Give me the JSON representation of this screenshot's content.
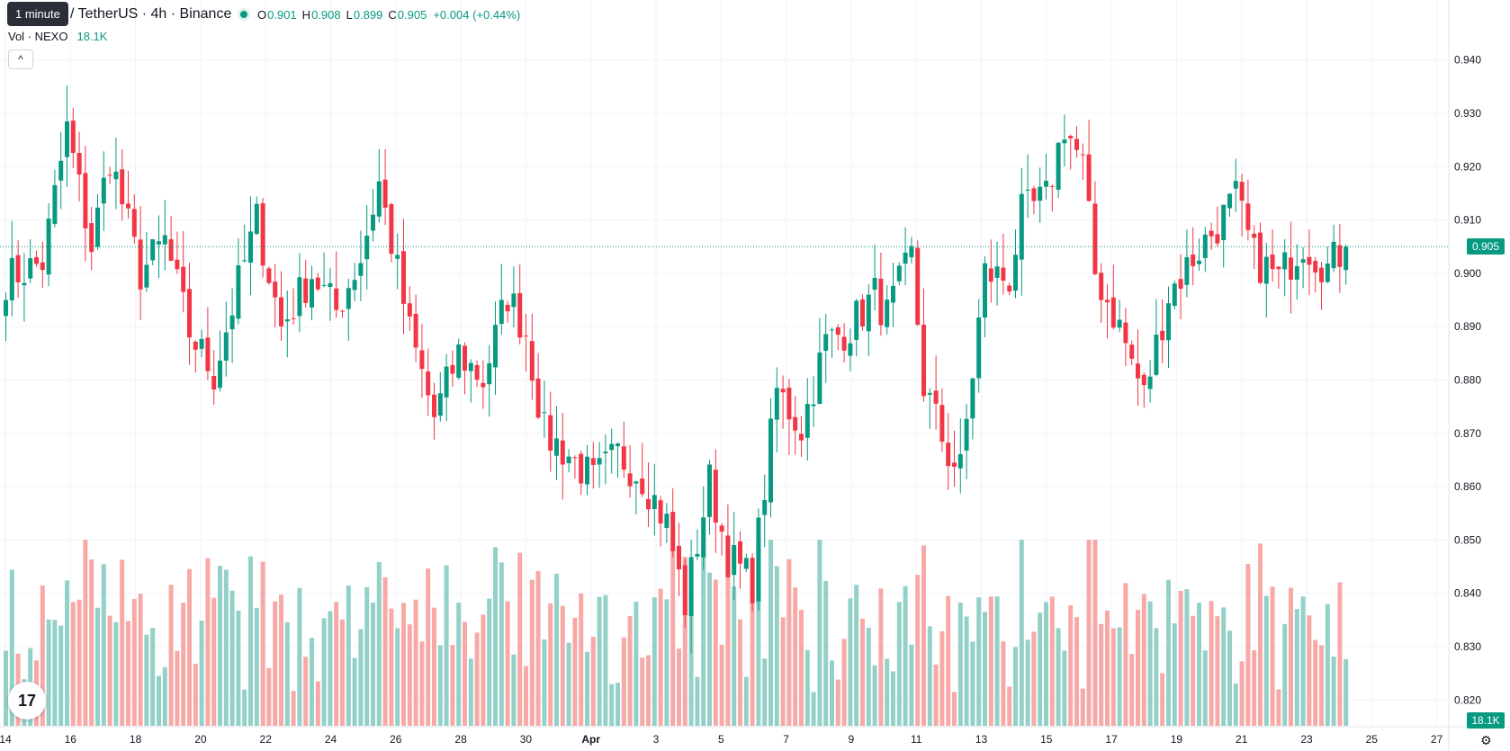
{
  "tooltip": "1 minute",
  "symbol": "/ TetherUS · 4h · Binance",
  "ohlc": {
    "o_label": "O",
    "o": "0.901",
    "h_label": "H",
    "h": "0.908",
    "l_label": "L",
    "l": "0.899",
    "c_label": "C",
    "c": "0.905",
    "change": "+0.004 (+0.44%)"
  },
  "volume": {
    "label": "Vol · NEXO",
    "value": "18.1K"
  },
  "collapse_icon": "^",
  "logo_text": "17",
  "settings_icon": "⚙",
  "price_tag": "0.905",
  "volume_tag": "18.1K",
  "colors": {
    "up": "#089981",
    "down": "#f23645",
    "up_vol": "#93d1c8",
    "down_vol": "#f7a9a7",
    "grid": "#f0f3fa",
    "axis_text": "#131722"
  },
  "chart_data": {
    "type": "candlestick",
    "x_labels": [
      "14",
      "16",
      "18",
      "20",
      "22",
      "24",
      "26",
      "28",
      "30",
      "Apr",
      "3",
      "5",
      "7",
      "9",
      "11",
      "13",
      "15",
      "17",
      "19",
      "21",
      "23",
      "25",
      "27"
    ],
    "y_ticks": [
      "0.940",
      "0.930",
      "0.920",
      "0.910",
      "0.900",
      "0.890",
      "0.880",
      "0.870",
      "0.860",
      "0.850",
      "0.840",
      "0.830",
      "0.820"
    ],
    "ylim": [
      0.815,
      0.9445
    ],
    "last_price": 0.905,
    "anchors": [
      [
        0,
        0.899
      ],
      [
        6,
        0.902
      ],
      [
        10,
        0.927
      ],
      [
        14,
        0.905
      ],
      [
        17,
        0.922
      ],
      [
        22,
        0.9
      ],
      [
        26,
        0.906
      ],
      [
        30,
        0.889
      ],
      [
        34,
        0.881
      ],
      [
        38,
        0.898
      ],
      [
        41,
        0.91
      ],
      [
        45,
        0.89
      ],
      [
        50,
        0.9
      ],
      [
        54,
        0.893
      ],
      [
        58,
        0.903
      ],
      [
        61,
        0.917
      ],
      [
        66,
        0.889
      ],
      [
        70,
        0.873
      ],
      [
        74,
        0.885
      ],
      [
        78,
        0.88
      ],
      [
        82,
        0.896
      ],
      [
        85,
        0.889
      ],
      [
        88,
        0.87
      ],
      [
        92,
        0.866
      ],
      [
        96,
        0.861
      ],
      [
        100,
        0.866
      ],
      [
        104,
        0.862
      ],
      [
        108,
        0.853
      ],
      [
        111,
        0.838
      ],
      [
        115,
        0.861
      ],
      [
        118,
        0.847
      ],
      [
        122,
        0.842
      ],
      [
        126,
        0.878
      ],
      [
        130,
        0.871
      ],
      [
        134,
        0.887
      ],
      [
        138,
        0.89
      ],
      [
        142,
        0.896
      ],
      [
        144,
        0.892
      ],
      [
        148,
        0.903
      ],
      [
        150,
        0.879
      ],
      [
        154,
        0.866
      ],
      [
        156,
        0.863
      ],
      [
        160,
        0.9
      ],
      [
        164,
        0.899
      ],
      [
        166,
        0.911
      ],
      [
        170,
        0.914
      ],
      [
        173,
        0.928
      ],
      [
        176,
        0.92
      ],
      [
        178,
        0.9
      ],
      [
        182,
        0.89
      ],
      [
        186,
        0.877
      ],
      [
        190,
        0.896
      ],
      [
        194,
        0.903
      ],
      [
        198,
        0.909
      ],
      [
        201,
        0.914
      ],
      [
        204,
        0.903
      ],
      [
        208,
        0.899
      ],
      [
        212,
        0.906
      ],
      [
        216,
        0.901
      ],
      [
        219,
        0.905
      ]
    ],
    "volume_ylim": [
      0,
      60000
    ]
  }
}
